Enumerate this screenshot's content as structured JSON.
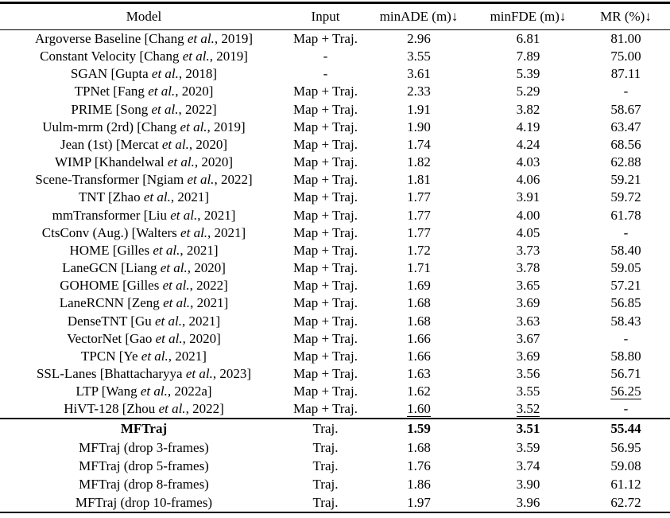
{
  "table": {
    "headers": [
      "Model",
      "Input",
      "minADE (m)↓",
      "minFDE (m)↓",
      "MR (%)↓"
    ],
    "text_color": "#000000",
    "background_color": "#ffffff",
    "groups": [
      {
        "name": "baselines",
        "rows": [
          {
            "cells": [
              "Argoverse Baseline [Chang et al., 2019]",
              "Map + Traj.",
              "2.96",
              "6.81",
              "81.00"
            ]
          },
          {
            "cells": [
              "Constant Velocity [Chang et al., 2019]",
              "-",
              "3.55",
              "7.89",
              "75.00"
            ]
          },
          {
            "cells": [
              "SGAN [Gupta et al., 2018]",
              "-",
              "3.61",
              "5.39",
              "87.11"
            ]
          },
          {
            "cells": [
              "TPNet [Fang et al., 2020]",
              "Map + Traj.",
              "2.33",
              "5.29",
              "-"
            ]
          },
          {
            "cells": [
              "PRIME [Song et al., 2022]",
              "Map + Traj.",
              "1.91",
              "3.82",
              "58.67"
            ]
          },
          {
            "cells": [
              "Uulm-mrm (2rd) [Chang et al., 2019]",
              "Map + Traj.",
              "1.90",
              "4.19",
              "63.47"
            ]
          },
          {
            "cells": [
              "Jean (1st) [Mercat et al., 2020]",
              "Map + Traj.",
              "1.74",
              "4.24",
              "68.56"
            ]
          },
          {
            "cells": [
              "WIMP [Khandelwal et al., 2020]",
              "Map + Traj.",
              "1.82",
              "4.03",
              "62.88"
            ]
          },
          {
            "cells": [
              "Scene-Transformer [Ngiam et al., 2022]",
              "Map + Traj.",
              "1.81",
              "4.06",
              "59.21"
            ]
          },
          {
            "cells": [
              "TNT [Zhao et al., 2021]",
              "Map + Traj.",
              "1.77",
              "3.91",
              "59.72"
            ]
          },
          {
            "cells": [
              "mmTransformer [Liu et al., 2021]",
              "Map + Traj.",
              "1.77",
              "4.00",
              "61.78"
            ]
          },
          {
            "cells": [
              "CtsConv (Aug.) [Walters et al., 2021]",
              "Map + Traj.",
              "1.77",
              "4.05",
              "-"
            ]
          },
          {
            "cells": [
              "HOME [Gilles et al., 2021]",
              "Map + Traj.",
              "1.72",
              "3.73",
              "58.40"
            ]
          },
          {
            "cells": [
              "LaneGCN [Liang et al., 2020]",
              "Map + Traj.",
              "1.71",
              "3.78",
              "59.05"
            ]
          },
          {
            "cells": [
              "GOHOME [Gilles et al., 2022]",
              "Map + Traj.",
              "1.69",
              "3.65",
              "57.21"
            ]
          },
          {
            "cells": [
              "LaneRCNN [Zeng et al., 2021]",
              "Map + Traj.",
              "1.68",
              "3.69",
              "56.85"
            ]
          },
          {
            "cells": [
              "DenseTNT [Gu et al., 2021]",
              "Map + Traj.",
              "1.68",
              "3.63",
              "58.43"
            ]
          },
          {
            "cells": [
              "VectorNet [Gao et al., 2020]",
              "Map + Traj.",
              "1.66",
              "3.67",
              "-"
            ]
          },
          {
            "cells": [
              "TPCN [Ye et al., 2021]",
              "Map + Traj.",
              "1.66",
              "3.69",
              "58.80"
            ]
          },
          {
            "cells": [
              "SSL-Lanes [Bhattacharyya et al., 2023]",
              "Map + Traj.",
              "1.63",
              "3.56",
              "56.71"
            ]
          },
          {
            "cells": [
              "LTP [Wang et al., 2022a]",
              "Map + Traj.",
              "1.62",
              "3.55",
              "56.25"
            ],
            "underline": [
              4
            ]
          },
          {
            "cells": [
              "HiVT-128 [Zhou et al., 2022]",
              "Map + Traj.",
              "1.60",
              "3.52",
              "-"
            ],
            "underline": [
              2,
              3
            ]
          }
        ]
      },
      {
        "name": "ours",
        "rows": [
          {
            "cells": [
              "MFTraj",
              "Traj.",
              "1.59",
              "3.51",
              "55.44"
            ],
            "bold": [
              0,
              2,
              3,
              4
            ]
          },
          {
            "cells": [
              "MFTraj (drop 3-frames)",
              "Traj.",
              "1.68",
              "3.59",
              "56.95"
            ]
          },
          {
            "cells": [
              "MFTraj (drop 5-frames)",
              "Traj.",
              "1.76",
              "3.74",
              "59.08"
            ]
          },
          {
            "cells": [
              "MFTraj (drop 8-frames)",
              "Traj.",
              "1.86",
              "3.90",
              "61.12"
            ]
          },
          {
            "cells": [
              "MFTraj (drop 10-frames)",
              "Traj.",
              "1.97",
              "3.96",
              "62.72"
            ]
          }
        ]
      }
    ]
  }
}
